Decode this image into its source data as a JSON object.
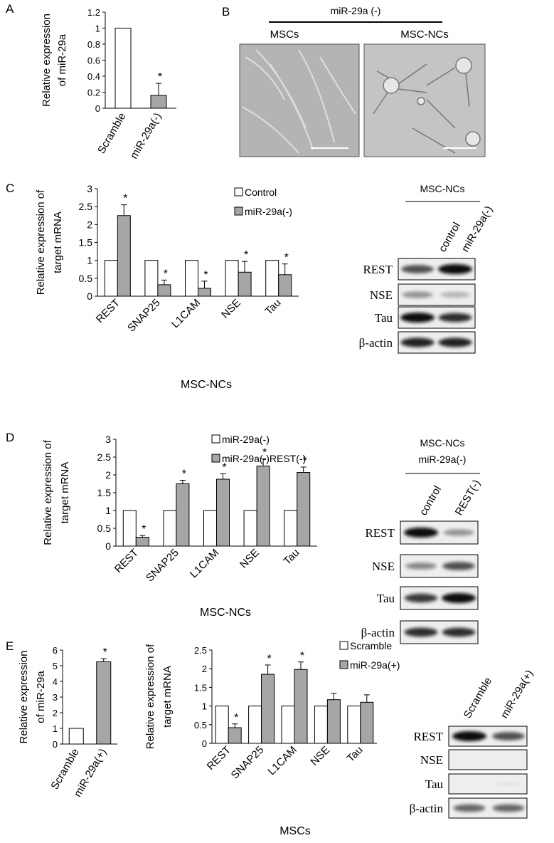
{
  "chart_data": [
    {
      "type": "bar",
      "panel": "A",
      "ylabel": [
        "Relative expression",
        "of miR-29a"
      ],
      "categories": [
        "Scramble",
        "miR-29a(-)"
      ],
      "values": [
        1,
        0.16
      ],
      "errors": [
        null,
        0.15
      ],
      "markers": [
        null,
        "*"
      ],
      "colors": [
        "#ffffff",
        "#a6a6a6"
      ],
      "ylim": [
        0,
        1.2
      ],
      "yticks": [
        0,
        0.2,
        0.4,
        0.6,
        0.8,
        1,
        1.2
      ]
    },
    {
      "type": "bar",
      "panel": "C",
      "ylabel": [
        "Relative expression of",
        "target mRNA"
      ],
      "xlabel": "MSC-NCs",
      "categories": [
        "REST",
        "SNAP25",
        "L1CAM",
        "NSE",
        "Tau"
      ],
      "series": [
        {
          "name": "Control",
          "color": "#ffffff",
          "values": [
            1,
            1,
            1,
            1,
            1
          ]
        },
        {
          "name": "miR-29a(-)",
          "color": "#a6a6a6",
          "values": [
            2.25,
            0.32,
            0.22,
            0.67,
            0.6
          ],
          "errors": [
            0.3,
            0.13,
            0.2,
            0.3,
            0.3
          ],
          "markers": [
            "*",
            "*",
            "*",
            "*",
            "*"
          ]
        }
      ],
      "ylim": [
        0,
        3
      ],
      "yticks": [
        0,
        0.5,
        1,
        1.5,
        2,
        2.5,
        3
      ]
    },
    {
      "type": "bar",
      "panel": "D",
      "ylabel": [
        "Relative expression of",
        "target mRNA"
      ],
      "xlabel": "MSC-NCs",
      "categories": [
        "REST",
        "SNAP25",
        "L1CAM",
        "NSE",
        "Tau"
      ],
      "series": [
        {
          "name": "miR-29a(-)",
          "color": "#ffffff",
          "values": [
            1,
            1,
            1,
            1,
            1
          ]
        },
        {
          "name": "miR-29a(-)REST(-)",
          "color": "#a6a6a6",
          "values": [
            0.25,
            1.75,
            1.88,
            2.25,
            2.07
          ],
          "errors": [
            0.05,
            0.1,
            0.15,
            0.2,
            0.15
          ],
          "markers": [
            "*",
            "*",
            "*",
            "*",
            "*"
          ]
        }
      ],
      "ylim": [
        0,
        3
      ],
      "yticks": [
        0,
        0.5,
        1,
        1.5,
        2,
        2.5,
        3
      ]
    },
    {
      "type": "bar",
      "panel": "E",
      "ylabel": [
        "Relative expression",
        "of miR-29a"
      ],
      "categories": [
        "Scramble",
        "miR-29a(+)"
      ],
      "values": [
        1,
        5.25
      ],
      "errors": [
        null,
        0.2
      ],
      "markers": [
        null,
        "*"
      ],
      "colors": [
        "#ffffff",
        "#a6a6a6"
      ],
      "ylim": [
        0,
        6
      ],
      "yticks": [
        0,
        1,
        2,
        3,
        4,
        5,
        6
      ]
    },
    {
      "type": "bar",
      "ylabel": [
        "Relative expression of",
        "target mRNA"
      ],
      "xlabel": "MSCs",
      "categories": [
        "REST",
        "SNAP25",
        "L1CAM",
        "NSE",
        "Tau"
      ],
      "series": [
        {
          "name": "Scramble",
          "color": "#ffffff",
          "values": [
            1,
            1,
            1,
            1,
            1
          ]
        },
        {
          "name": "miR-29a(+)",
          "color": "#a6a6a6",
          "values": [
            0.42,
            1.85,
            1.98,
            1.17,
            1.1
          ],
          "errors": [
            0.1,
            0.25,
            0.2,
            0.17,
            0.2
          ],
          "markers": [
            "*",
            "*",
            "*",
            null,
            null
          ]
        }
      ],
      "ylim": [
        0,
        2.5
      ],
      "yticks": [
        0,
        0.5,
        1,
        1.5,
        2,
        2.5
      ]
    }
  ],
  "panel_b": {
    "panel": "B",
    "condition": "miR-29a (-)",
    "images": [
      "MSCs",
      "MSC-NCs"
    ]
  },
  "blots": [
    {
      "title": [
        "MSC-NCs"
      ],
      "lanes": [
        "control",
        "miR-29a(-)"
      ],
      "rows": [
        "REST",
        "NSE",
        "Tau",
        "β-actin"
      ]
    },
    {
      "title": [
        "MSC-NCs",
        "miR-29a(-)"
      ],
      "lanes": [
        "control",
        "REST(-)"
      ],
      "rows": [
        "REST",
        "NSE",
        "Tau",
        "β-actin"
      ]
    },
    {
      "lanes": [
        "Scramble",
        "miR-29a(+)"
      ],
      "rows": [
        "REST",
        "NSE",
        "Tau",
        "β-actin"
      ]
    }
  ]
}
